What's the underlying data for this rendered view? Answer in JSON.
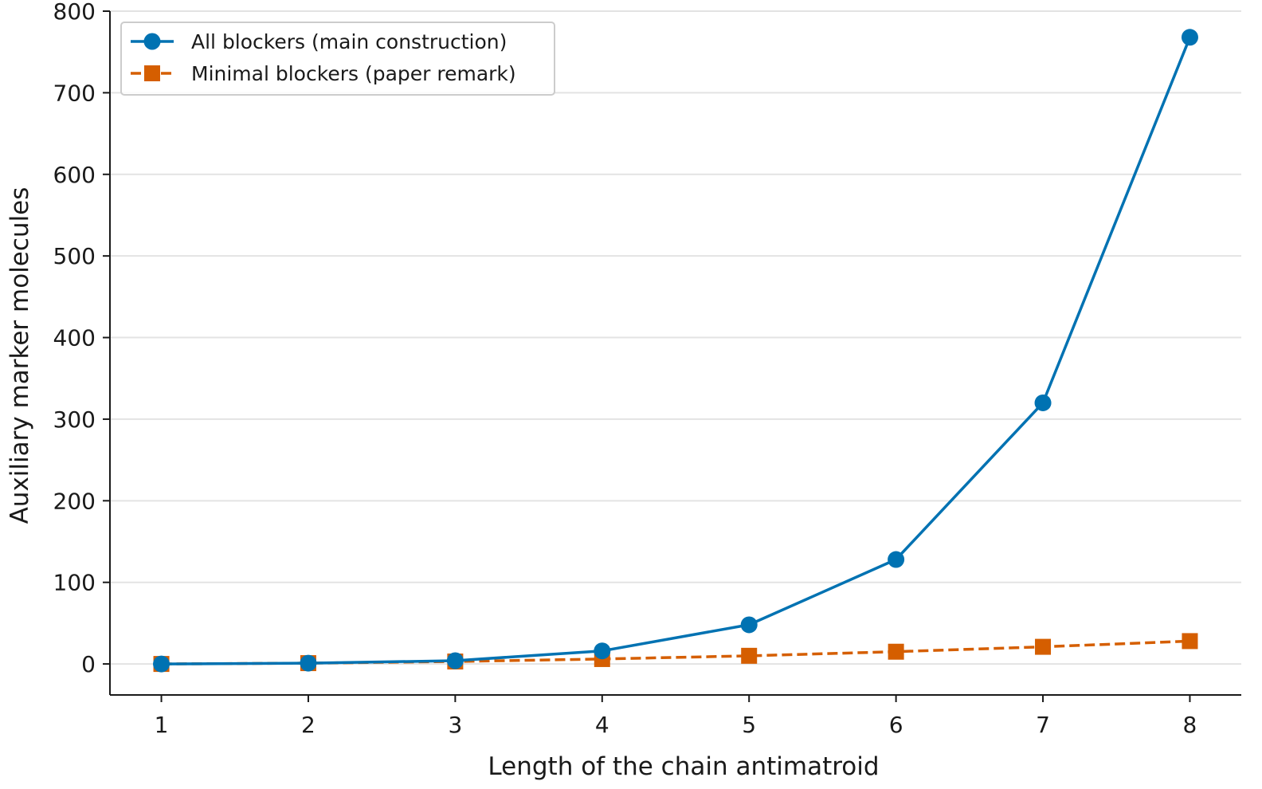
{
  "chart_data": {
    "type": "line",
    "title": "",
    "xlabel": "Length of the chain antimatroid",
    "ylabel": "Auxiliary marker molecules",
    "x": [
      1,
      2,
      3,
      4,
      5,
      6,
      7,
      8
    ],
    "xticks": [
      "1",
      "2",
      "3",
      "4",
      "5",
      "6",
      "7",
      "8"
    ],
    "yticks": [
      "0",
      "100",
      "200",
      "300",
      "400",
      "500",
      "600",
      "700",
      "800"
    ],
    "xlim": [
      0.65,
      8.35
    ],
    "ylim": [
      -38,
      800
    ],
    "grid": "horizontal",
    "legend_position": "top-left",
    "series": [
      {
        "name": "All blockers (main construction)",
        "values": [
          0,
          1,
          4,
          16,
          48,
          128,
          320,
          768
        ],
        "color": "#0072B2",
        "marker": "circle",
        "line_style": "solid"
      },
      {
        "name": "Minimal blockers (paper remark)",
        "values": [
          0,
          1,
          3,
          6,
          10,
          15,
          21,
          28
        ],
        "color": "#D55E00",
        "marker": "square",
        "line_style": "dashed"
      }
    ]
  }
}
